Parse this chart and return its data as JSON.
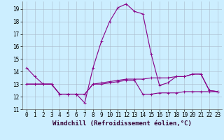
{
  "xlabel": "Windchill (Refroidissement éolien,°C)",
  "background_color": "#cceeff",
  "grid_color": "#aabbcc",
  "line_color": "#880088",
  "line1_y": [
    14.3,
    13.6,
    13.0,
    13.0,
    12.2,
    12.2,
    12.2,
    11.5,
    14.3,
    16.4,
    18.0,
    19.1,
    19.4,
    18.8,
    18.6,
    15.4,
    12.9,
    13.1,
    13.6,
    13.6,
    13.8,
    13.8,
    12.5,
    12.4
  ],
  "line2_y": [
    13.0,
    13.0,
    13.0,
    13.0,
    12.2,
    12.2,
    12.2,
    12.2,
    13.0,
    13.1,
    13.2,
    13.3,
    13.4,
    13.4,
    13.4,
    13.5,
    13.5,
    13.5,
    13.6,
    13.6,
    13.8,
    13.8,
    12.5,
    12.4
  ],
  "line3_y": [
    13.0,
    13.0,
    13.0,
    13.0,
    12.2,
    12.2,
    12.2,
    12.2,
    13.0,
    13.0,
    13.1,
    13.2,
    13.3,
    13.3,
    12.2,
    12.2,
    12.3,
    12.3,
    12.3,
    12.4,
    12.4,
    12.4,
    12.4,
    12.4
  ],
  "ylim": [
    11.0,
    19.6
  ],
  "yticks": [
    11,
    12,
    13,
    14,
    15,
    16,
    17,
    18,
    19
  ],
  "tick_fontsize": 5.5,
  "xlabel_fontsize": 6.5,
  "marker_size": 2.0,
  "linewidth": 0.8
}
